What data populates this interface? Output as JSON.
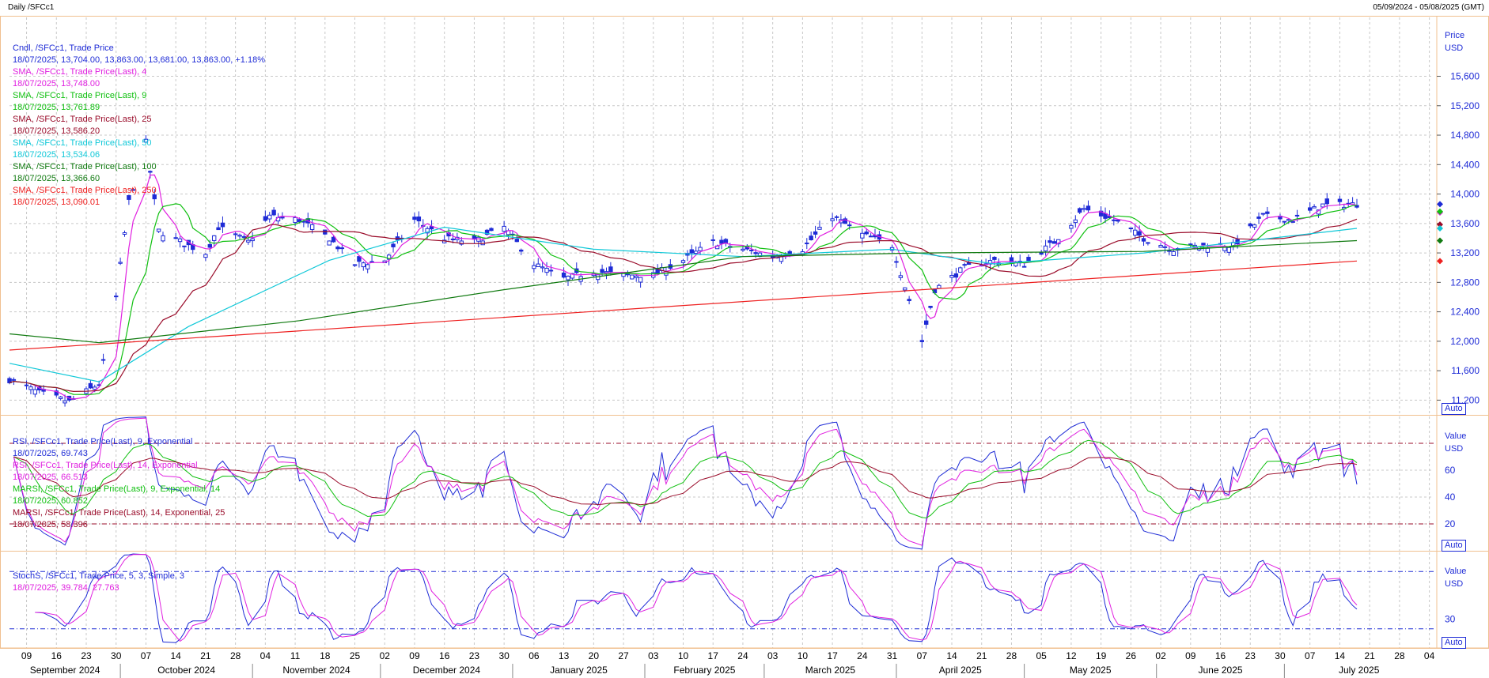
{
  "header": {
    "title": "Daily /SFCc1",
    "range": "05/09/2024 - 05/08/2025 (GMT)"
  },
  "colors": {
    "candle": "#1e2bd6",
    "sma4": "#e020e0",
    "sma9": "#10c010",
    "sma25": "#9a0c2a",
    "sma50": "#10c8d8",
    "sma100": "#107a10",
    "sma250": "#ee2020",
    "rsi9": "#1e2bd6",
    "rsi14": "#e020e0",
    "marsi9": "#10c010",
    "marsi14": "#9a0c2a",
    "stoch_k": "#1e2bd6",
    "stoch_d": "#e020e0",
    "grid": "#c8c8c8",
    "panel_border": "#f0c090",
    "axis_text": "#1e2bd6"
  },
  "price_panel": {
    "axis_title": "Price",
    "axis_unit": "USD",
    "auto_label": "Auto",
    "legend": [
      {
        "text": "Cndl, /SFCc1, Trade Price",
        "color": "#1e2bd6"
      },
      {
        "text": "18/07/2025, 13,704.00, 13,863.00, 13,681.00, 13,863.00, +1.18%",
        "color": "#1e2bd6"
      },
      {
        "text": "SMA, /SFCc1, Trade Price(Last), 4",
        "color": "#e020e0"
      },
      {
        "text": "18/07/2025, 13,748.00",
        "color": "#e020e0"
      },
      {
        "text": "SMA, /SFCc1, Trade Price(Last), 9",
        "color": "#10c010"
      },
      {
        "text": "18/07/2025, 13,761.89",
        "color": "#10c010"
      },
      {
        "text": "SMA, /SFCc1, Trade Price(Last), 25",
        "color": "#9a0c2a"
      },
      {
        "text": "18/07/2025, 13,586.20",
        "color": "#9a0c2a"
      },
      {
        "text": "SMA, /SFCc1, Trade Price(Last), 50",
        "color": "#10c8d8"
      },
      {
        "text": "18/07/2025, 13,534.06",
        "color": "#10c8d8"
      },
      {
        "text": "SMA, /SFCc1, Trade Price(Last), 100",
        "color": "#107a10"
      },
      {
        "text": "18/07/2025, 13,366.60",
        "color": "#107a10"
      },
      {
        "text": "SMA, /SFCc1, Trade Price(Last), 250",
        "color": "#ee2020"
      },
      {
        "text": "18/07/2025, 13,090.01",
        "color": "#ee2020"
      }
    ]
  },
  "rsi_panel": {
    "axis_title": "Value",
    "axis_unit": "USD",
    "auto_label": "Auto",
    "legend": [
      {
        "text": "RSI, /SFCc1, Trade Price(Last), 9, Exponential",
        "color": "#1e2bd6"
      },
      {
        "text": "18/07/2025, 69.743",
        "color": "#1e2bd6"
      },
      {
        "text": "RSI, /SFCc1, Trade Price(Last), 14, Exponential",
        "color": "#e020e0"
      },
      {
        "text": "18/07/2025, 66.513",
        "color": "#e020e0"
      },
      {
        "text": "MARSI, /SFCc1, Trade Price(Last), 9, Exponential, 14",
        "color": "#10c010"
      },
      {
        "text": "18/07/2025, 60.852",
        "color": "#10c010"
      },
      {
        "text": "MARSI, /SFCc1, Trade Price(Last), 14, Exponential, 25",
        "color": "#9a0c2a"
      },
      {
        "text": "18/07/2025, 58.396",
        "color": "#9a0c2a"
      }
    ]
  },
  "stoch_panel": {
    "axis_title": "Value",
    "axis_unit": "USD",
    "auto_label": "Auto",
    "legend": [
      {
        "text": "StochS, /SFCc1, Trade Price, 5, 3, Simple, 3",
        "color": "#1e2bd6"
      },
      {
        "text": "18/07/2025, 39.784, 27.763",
        "color": "#e020e0"
      }
    ]
  },
  "chart_data": {
    "type": "line",
    "price": {
      "ylim": [
        11000,
        16400
      ],
      "yticks": [
        11200,
        11600,
        12000,
        12400,
        12800,
        13200,
        13600,
        14000,
        14400,
        14800,
        15200,
        15600
      ],
      "ytick_labels": [
        "11,200",
        "11,600",
        "12,000",
        "12,400",
        "12,800",
        "13,200",
        "13,600",
        "14,000",
        "14,400",
        "14,800",
        "15,200",
        "15,600"
      ],
      "last_values": {
        "candle_close": 13863,
        "sma4": 13748,
        "sma9": 13761.89,
        "sma25": 13586.2,
        "sma50": 13534.06,
        "sma100": 13366.6,
        "sma250": 13090.01
      },
      "close_path": [
        {
          "date": "2024-09-05",
          "v": 11480
        },
        {
          "date": "2024-09-12",
          "v": 11300
        },
        {
          "date": "2024-09-19",
          "v": 11180
        },
        {
          "date": "2024-09-26",
          "v": 11420
        },
        {
          "date": "2024-09-30",
          "v": 12600
        },
        {
          "date": "2024-10-03",
          "v": 13900
        },
        {
          "date": "2024-10-07",
          "v": 14700
        },
        {
          "date": "2024-10-10",
          "v": 13500
        },
        {
          "date": "2024-10-17",
          "v": 13300
        },
        {
          "date": "2024-10-21",
          "v": 13200
        },
        {
          "date": "2024-10-24",
          "v": 13550
        },
        {
          "date": "2024-10-31",
          "v": 13350
        },
        {
          "date": "2024-11-05",
          "v": 13700
        },
        {
          "date": "2024-11-12",
          "v": 13650
        },
        {
          "date": "2024-11-19",
          "v": 13400
        },
        {
          "date": "2024-11-25",
          "v": 13050
        },
        {
          "date": "2024-12-02",
          "v": 13100
        },
        {
          "date": "2024-12-09",
          "v": 13650
        },
        {
          "date": "2024-12-16",
          "v": 13400
        },
        {
          "date": "2024-12-23",
          "v": 13350
        },
        {
          "date": "2024-12-30",
          "v": 13550
        },
        {
          "date": "2025-01-06",
          "v": 13050
        },
        {
          "date": "2025-01-13",
          "v": 12850
        },
        {
          "date": "2025-01-20",
          "v": 12950
        },
        {
          "date": "2025-01-27",
          "v": 12900
        },
        {
          "date": "2025-02-03",
          "v": 12900
        },
        {
          "date": "2025-02-10",
          "v": 13100
        },
        {
          "date": "2025-02-17",
          "v": 13350
        },
        {
          "date": "2025-02-24",
          "v": 13250
        },
        {
          "date": "2025-03-03",
          "v": 13150
        },
        {
          "date": "2025-03-10",
          "v": 13250
        },
        {
          "date": "2025-03-17",
          "v": 13700
        },
        {
          "date": "2025-03-24",
          "v": 13450
        },
        {
          "date": "2025-03-31",
          "v": 13300
        },
        {
          "date": "2025-04-07",
          "v": 12000
        },
        {
          "date": "2025-04-10",
          "v": 12700
        },
        {
          "date": "2025-04-17",
          "v": 13000
        },
        {
          "date": "2025-04-24",
          "v": 13100
        },
        {
          "date": "2025-05-01",
          "v": 13050
        },
        {
          "date": "2025-05-08",
          "v": 13350
        },
        {
          "date": "2025-05-15",
          "v": 13800
        },
        {
          "date": "2025-05-22",
          "v": 13650
        },
        {
          "date": "2025-05-29",
          "v": 13400
        },
        {
          "date": "2025-06-05",
          "v": 13250
        },
        {
          "date": "2025-06-12",
          "v": 13300
        },
        {
          "date": "2025-06-19",
          "v": 13300
        },
        {
          "date": "2025-06-26",
          "v": 13700
        },
        {
          "date": "2025-07-03",
          "v": 13650
        },
        {
          "date": "2025-07-10",
          "v": 13850
        },
        {
          "date": "2025-07-18",
          "v": 13863
        }
      ],
      "sma250_path": [
        {
          "date": "2024-09-05",
          "v": 11880
        },
        {
          "date": "2025-07-18",
          "v": 13090
        }
      ],
      "sma100_path": [
        {
          "date": "2024-09-05",
          "v": 12100
        },
        {
          "date": "2024-09-26",
          "v": 11980
        },
        {
          "date": "2024-11-12",
          "v": 12280
        },
        {
          "date": "2024-12-30",
          "v": 12700
        },
        {
          "date": "2025-02-24",
          "v": 13150
        },
        {
          "date": "2025-04-07",
          "v": 13200
        },
        {
          "date": "2025-05-29",
          "v": 13220
        },
        {
          "date": "2025-07-18",
          "v": 13367
        }
      ],
      "sma50_path": [
        {
          "date": "2024-09-05",
          "v": 11700
        },
        {
          "date": "2024-09-26",
          "v": 11450
        },
        {
          "date": "2024-10-17",
          "v": 12200
        },
        {
          "date": "2024-11-19",
          "v": 13100
        },
        {
          "date": "2024-12-16",
          "v": 13550
        },
        {
          "date": "2025-01-20",
          "v": 13250
        },
        {
          "date": "2025-02-24",
          "v": 13150
        },
        {
          "date": "2025-03-31",
          "v": 13250
        },
        {
          "date": "2025-04-24",
          "v": 13050
        },
        {
          "date": "2025-05-29",
          "v": 13200
        },
        {
          "date": "2025-07-18",
          "v": 13534
        }
      ]
    },
    "rsi": {
      "ylim": [
        0,
        100
      ],
      "yticks": [
        20,
        40,
        60
      ],
      "reference_lines": [
        20,
        80
      ],
      "last_values": {
        "rsi9": 69.743,
        "rsi14": 66.513,
        "marsi9": 60.852,
        "marsi14": 58.396
      }
    },
    "stoch": {
      "ylim": [
        0,
        100
      ],
      "yticks": [
        30
      ],
      "reference_lines": [
        20,
        80
      ],
      "last_values": {
        "k": 39.784,
        "d": 27.763
      }
    },
    "x_axis": {
      "start": "2024-09-05",
      "end": "2025-08-05",
      "day_ticks": [
        {
          "date": "2024-09-09",
          "label": "09"
        },
        {
          "date": "2024-09-16",
          "label": "16"
        },
        {
          "date": "2024-09-23",
          "label": "23"
        },
        {
          "date": "2024-09-30",
          "label": "30"
        },
        {
          "date": "2024-10-07",
          "label": "07"
        },
        {
          "date": "2024-10-14",
          "label": "14"
        },
        {
          "date": "2024-10-21",
          "label": "21"
        },
        {
          "date": "2024-10-28",
          "label": "28"
        },
        {
          "date": "2024-11-04",
          "label": "04"
        },
        {
          "date": "2024-11-11",
          "label": "11"
        },
        {
          "date": "2024-11-18",
          "label": "18"
        },
        {
          "date": "2024-11-25",
          "label": "25"
        },
        {
          "date": "2024-12-02",
          "label": "02"
        },
        {
          "date": "2024-12-09",
          "label": "09"
        },
        {
          "date": "2024-12-16",
          "label": "16"
        },
        {
          "date": "2024-12-23",
          "label": "23"
        },
        {
          "date": "2024-12-30",
          "label": "30"
        },
        {
          "date": "2025-01-06",
          "label": "06"
        },
        {
          "date": "2025-01-13",
          "label": "13"
        },
        {
          "date": "2025-01-20",
          "label": "20"
        },
        {
          "date": "2025-01-27",
          "label": "27"
        },
        {
          "date": "2025-02-03",
          "label": "03"
        },
        {
          "date": "2025-02-10",
          "label": "10"
        },
        {
          "date": "2025-02-17",
          "label": "17"
        },
        {
          "date": "2025-02-24",
          "label": "24"
        },
        {
          "date": "2025-03-03",
          "label": "03"
        },
        {
          "date": "2025-03-10",
          "label": "10"
        },
        {
          "date": "2025-03-17",
          "label": "17"
        },
        {
          "date": "2025-03-24",
          "label": "24"
        },
        {
          "date": "2025-03-31",
          "label": "31"
        },
        {
          "date": "2025-04-07",
          "label": "07"
        },
        {
          "date": "2025-04-14",
          "label": "14"
        },
        {
          "date": "2025-04-21",
          "label": "21"
        },
        {
          "date": "2025-04-28",
          "label": "28"
        },
        {
          "date": "2025-05-05",
          "label": "05"
        },
        {
          "date": "2025-05-12",
          "label": "12"
        },
        {
          "date": "2025-05-19",
          "label": "19"
        },
        {
          "date": "2025-05-26",
          "label": "26"
        },
        {
          "date": "2025-06-02",
          "label": "02"
        },
        {
          "date": "2025-06-09",
          "label": "09"
        },
        {
          "date": "2025-06-16",
          "label": "16"
        },
        {
          "date": "2025-06-23",
          "label": "23"
        },
        {
          "date": "2025-06-30",
          "label": "30"
        },
        {
          "date": "2025-07-07",
          "label": "07"
        },
        {
          "date": "2025-07-14",
          "label": "14"
        },
        {
          "date": "2025-07-21",
          "label": "21"
        },
        {
          "date": "2025-07-28",
          "label": "28"
        },
        {
          "date": "2025-08-04",
          "label": "04"
        }
      ],
      "months": [
        {
          "date": "2024-09-01",
          "label": "September 2024"
        },
        {
          "date": "2024-10-01",
          "label": "October 2024"
        },
        {
          "date": "2024-11-01",
          "label": "November 2024"
        },
        {
          "date": "2024-12-01",
          "label": "December 2024"
        },
        {
          "date": "2025-01-01",
          "label": "January 2025"
        },
        {
          "date": "2025-02-01",
          "label": "February 2025"
        },
        {
          "date": "2025-03-01",
          "label": "March 2025"
        },
        {
          "date": "2025-04-01",
          "label": "April 2025"
        },
        {
          "date": "2025-05-01",
          "label": "May 2025"
        },
        {
          "date": "2025-06-01",
          "label": "June 2025"
        },
        {
          "date": "2025-07-01",
          "label": "July 2025"
        }
      ]
    }
  }
}
